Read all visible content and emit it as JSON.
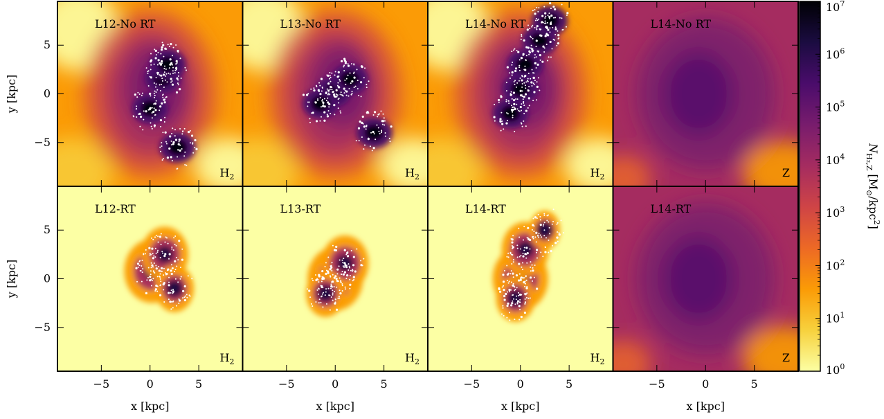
{
  "figure": {
    "panels": [
      {
        "id": "l12-nort",
        "label": "L12-No RT",
        "species": "H",
        "species_sub": "2",
        "row": 0,
        "col": 0,
        "kind": "h2-nort"
      },
      {
        "id": "l13-nort",
        "label": "L13-No RT",
        "species": "H",
        "species_sub": "2",
        "row": 0,
        "col": 1,
        "kind": "h2-nort"
      },
      {
        "id": "l14-nort",
        "label": "L14-No RT",
        "species": "H",
        "species_sub": "2",
        "row": 0,
        "col": 2,
        "kind": "h2-nort"
      },
      {
        "id": "l14-nort-z",
        "label": "L14-No RT",
        "species": "Z",
        "species_sub": "",
        "row": 0,
        "col": 3,
        "kind": "z"
      },
      {
        "id": "l12-rt",
        "label": "L12-RT",
        "species": "H",
        "species_sub": "2",
        "row": 1,
        "col": 0,
        "kind": "h2-rt"
      },
      {
        "id": "l13-rt",
        "label": "L13-RT",
        "species": "H",
        "species_sub": "2",
        "row": 1,
        "col": 1,
        "kind": "h2-rt"
      },
      {
        "id": "l14-rt",
        "label": "L14-RT",
        "species": "H",
        "species_sub": "2",
        "row": 1,
        "col": 2,
        "kind": "h2-rt"
      },
      {
        "id": "l14-rt-z",
        "label": "L14-RT",
        "species": "Z",
        "species_sub": "",
        "row": 1,
        "col": 3,
        "kind": "z"
      }
    ],
    "x_axis": {
      "label": "x [kpc]",
      "ticks": [
        "−5",
        "0",
        "5"
      ],
      "tick_values": [
        -5,
        0,
        5
      ],
      "range": [
        -9.5,
        9.5
      ]
    },
    "y_axis": {
      "label": "y [kpc]",
      "ticks": [
        "5",
        "0",
        "−5"
      ],
      "tick_values": [
        5,
        0,
        -5
      ],
      "range": [
        -9.5,
        9.5
      ]
    },
    "colorbar": {
      "scale": "log",
      "range": [
        1,
        10000000
      ],
      "tick_values": [
        1,
        10,
        100,
        1000,
        10000,
        100000,
        1000000,
        10000000
      ],
      "tick_exponents": [
        "0",
        "1",
        "2",
        "3",
        "4",
        "5",
        "6",
        "7"
      ],
      "tick_base": "10",
      "label_N": "N",
      "label_sub": "H₂,Z",
      "label_unit_prefix": " [M",
      "label_sun": "⊙",
      "label_unit_suffix": "/kpc",
      "label_unit_exp": "2",
      "label_close": "]",
      "colormap": "inferno-like",
      "colors": [
        "#fcffa4",
        "#f7d13d",
        "#fb9b06",
        "#ed6925",
        "#cf4446",
        "#a52c60",
        "#781c6d",
        "#4a0c6b",
        "#1b0c41",
        "#000004"
      ]
    }
  }
}
